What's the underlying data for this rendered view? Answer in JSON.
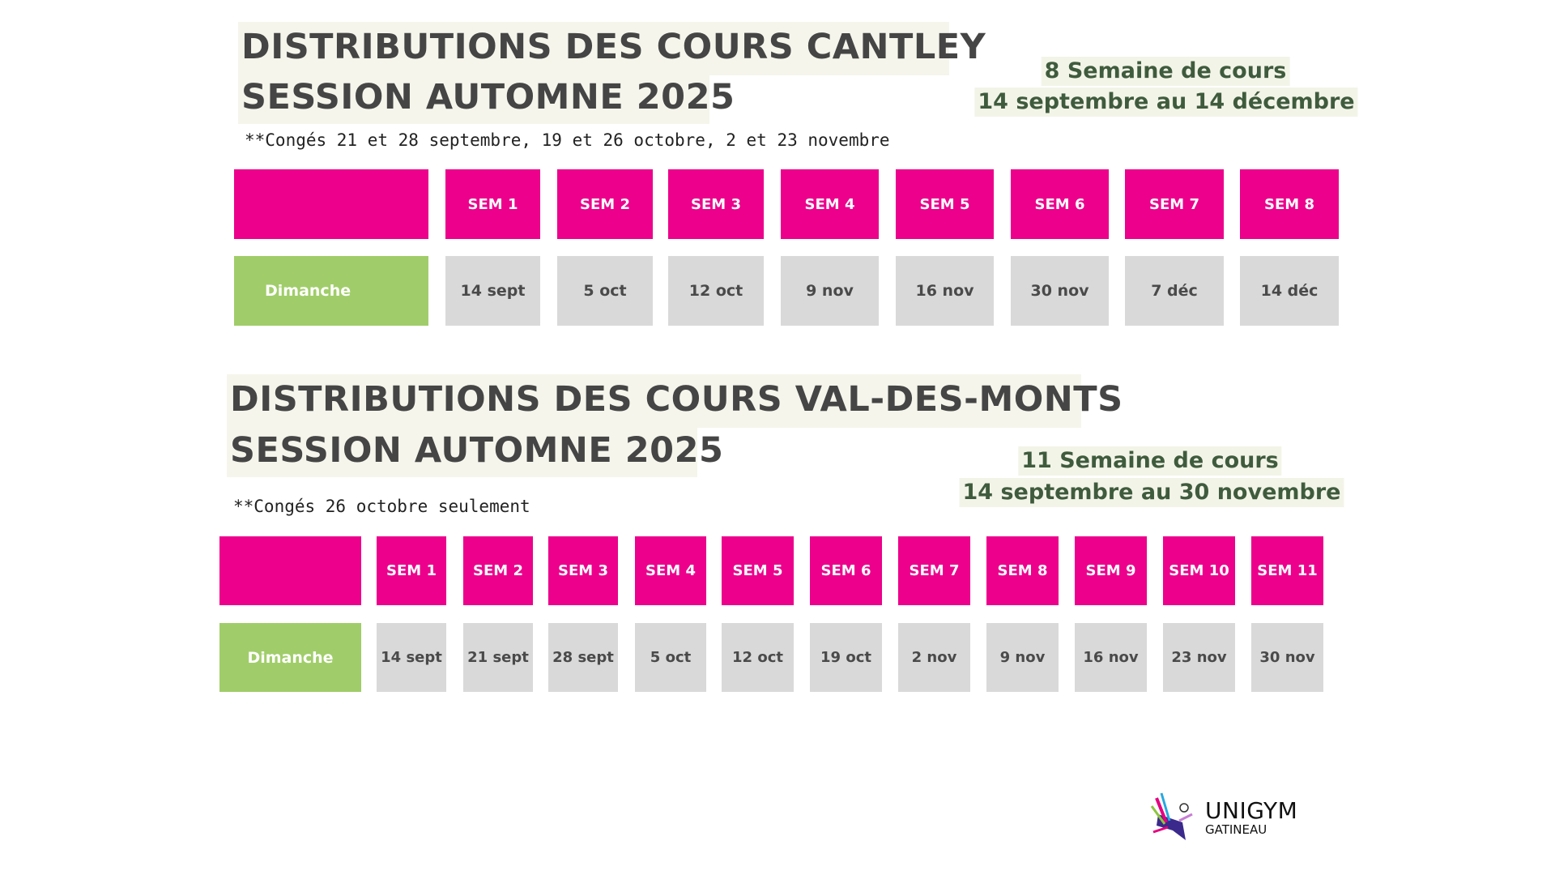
{
  "cantley": {
    "title_line1": "DISTRIBUTIONS DES COURS CANTLEY",
    "title_line2": "SESSION AUTOMNE 2025",
    "weeks_count": "8 Semaine de cours",
    "date_range": "14 septembre au 14 décembre",
    "note": "**Congés 21 et 28 septembre, 19 et 26 octobre, 2 et 23 novembre",
    "day_label": "Dimanche",
    "weeks": [
      "SEM 1",
      "SEM 2",
      "SEM 3",
      "SEM 4",
      "SEM 5",
      "SEM 6",
      "SEM 7",
      "SEM 8"
    ],
    "dates": [
      "14 sept",
      "5 oct",
      "12 oct",
      "9 nov",
      "16 nov",
      "30 nov",
      "7 déc",
      "14 déc"
    ]
  },
  "valdesmonts": {
    "title_line1": "DISTRIBUTIONS DES COURS VAL-DES-MONTS",
    "title_line2": "SESSION AUTOMNE 2025",
    "weeks_count": "11 Semaine de cours",
    "date_range": "14 septembre au 30 novembre",
    "note": "**Congés 26 octobre seulement",
    "day_label": "Dimanche",
    "weeks": [
      "SEM 1",
      "SEM 2",
      "SEM 3",
      "SEM 4",
      "SEM 5",
      "SEM 6",
      "SEM 7",
      "SEM 8",
      "SEM 9",
      "SEM 10",
      "SEM 11"
    ],
    "dates": [
      "14 sept",
      "21 sept",
      "28 sept",
      "5 oct",
      "12 oct",
      "19 oct",
      "2 nov",
      "9 nov",
      "16 nov",
      "23 nov",
      "30 nov"
    ]
  },
  "logo": {
    "name": "UNIGYM",
    "sub": "GATINEAU"
  },
  "colors": {
    "header": "#ec008c",
    "day": "#a0cd69",
    "date": "#d9d9d9",
    "title": "#454545",
    "info": "#3f5b3d"
  }
}
